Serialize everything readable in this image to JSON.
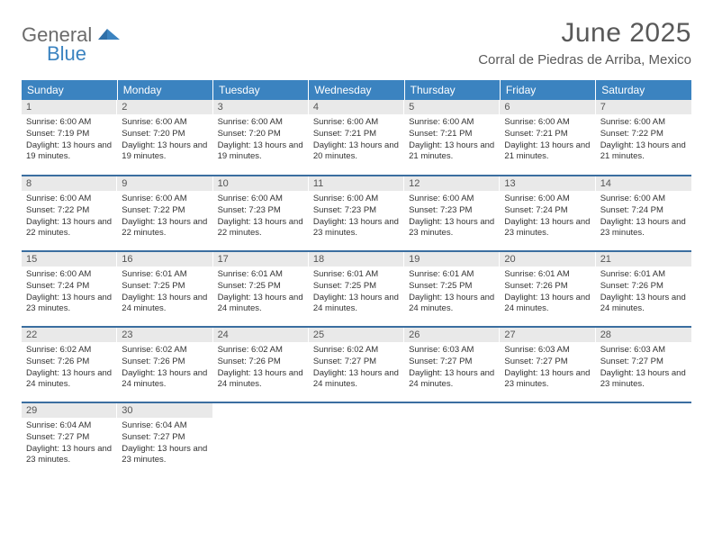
{
  "logo": {
    "general": "General",
    "blue": "Blue"
  },
  "title": "June 2025",
  "location": "Corral de Piedras de Arriba, Mexico",
  "colors": {
    "header_bg": "#3b83c0",
    "header_text": "#ffffff",
    "daynum_bg": "#e9e9e9",
    "daynum_text": "#555555",
    "row_border": "#3b6ea0",
    "title_text": "#595959"
  },
  "weekdays": [
    "Sunday",
    "Monday",
    "Tuesday",
    "Wednesday",
    "Thursday",
    "Friday",
    "Saturday"
  ],
  "weeks": [
    [
      {
        "n": "1",
        "sr": "6:00 AM",
        "ss": "7:19 PM",
        "dl": "13 hours and 19 minutes."
      },
      {
        "n": "2",
        "sr": "6:00 AM",
        "ss": "7:20 PM",
        "dl": "13 hours and 19 minutes."
      },
      {
        "n": "3",
        "sr": "6:00 AM",
        "ss": "7:20 PM",
        "dl": "13 hours and 19 minutes."
      },
      {
        "n": "4",
        "sr": "6:00 AM",
        "ss": "7:21 PM",
        "dl": "13 hours and 20 minutes."
      },
      {
        "n": "5",
        "sr": "6:00 AM",
        "ss": "7:21 PM",
        "dl": "13 hours and 21 minutes."
      },
      {
        "n": "6",
        "sr": "6:00 AM",
        "ss": "7:21 PM",
        "dl": "13 hours and 21 minutes."
      },
      {
        "n": "7",
        "sr": "6:00 AM",
        "ss": "7:22 PM",
        "dl": "13 hours and 21 minutes."
      }
    ],
    [
      {
        "n": "8",
        "sr": "6:00 AM",
        "ss": "7:22 PM",
        "dl": "13 hours and 22 minutes."
      },
      {
        "n": "9",
        "sr": "6:00 AM",
        "ss": "7:22 PM",
        "dl": "13 hours and 22 minutes."
      },
      {
        "n": "10",
        "sr": "6:00 AM",
        "ss": "7:23 PM",
        "dl": "13 hours and 22 minutes."
      },
      {
        "n": "11",
        "sr": "6:00 AM",
        "ss": "7:23 PM",
        "dl": "13 hours and 23 minutes."
      },
      {
        "n": "12",
        "sr": "6:00 AM",
        "ss": "7:23 PM",
        "dl": "13 hours and 23 minutes."
      },
      {
        "n": "13",
        "sr": "6:00 AM",
        "ss": "7:24 PM",
        "dl": "13 hours and 23 minutes."
      },
      {
        "n": "14",
        "sr": "6:00 AM",
        "ss": "7:24 PM",
        "dl": "13 hours and 23 minutes."
      }
    ],
    [
      {
        "n": "15",
        "sr": "6:00 AM",
        "ss": "7:24 PM",
        "dl": "13 hours and 23 minutes."
      },
      {
        "n": "16",
        "sr": "6:01 AM",
        "ss": "7:25 PM",
        "dl": "13 hours and 24 minutes."
      },
      {
        "n": "17",
        "sr": "6:01 AM",
        "ss": "7:25 PM",
        "dl": "13 hours and 24 minutes."
      },
      {
        "n": "18",
        "sr": "6:01 AM",
        "ss": "7:25 PM",
        "dl": "13 hours and 24 minutes."
      },
      {
        "n": "19",
        "sr": "6:01 AM",
        "ss": "7:25 PM",
        "dl": "13 hours and 24 minutes."
      },
      {
        "n": "20",
        "sr": "6:01 AM",
        "ss": "7:26 PM",
        "dl": "13 hours and 24 minutes."
      },
      {
        "n": "21",
        "sr": "6:01 AM",
        "ss": "7:26 PM",
        "dl": "13 hours and 24 minutes."
      }
    ],
    [
      {
        "n": "22",
        "sr": "6:02 AM",
        "ss": "7:26 PM",
        "dl": "13 hours and 24 minutes."
      },
      {
        "n": "23",
        "sr": "6:02 AM",
        "ss": "7:26 PM",
        "dl": "13 hours and 24 minutes."
      },
      {
        "n": "24",
        "sr": "6:02 AM",
        "ss": "7:26 PM",
        "dl": "13 hours and 24 minutes."
      },
      {
        "n": "25",
        "sr": "6:02 AM",
        "ss": "7:27 PM",
        "dl": "13 hours and 24 minutes."
      },
      {
        "n": "26",
        "sr": "6:03 AM",
        "ss": "7:27 PM",
        "dl": "13 hours and 24 minutes."
      },
      {
        "n": "27",
        "sr": "6:03 AM",
        "ss": "7:27 PM",
        "dl": "13 hours and 23 minutes."
      },
      {
        "n": "28",
        "sr": "6:03 AM",
        "ss": "7:27 PM",
        "dl": "13 hours and 23 minutes."
      }
    ],
    [
      {
        "n": "29",
        "sr": "6:04 AM",
        "ss": "7:27 PM",
        "dl": "13 hours and 23 minutes."
      },
      {
        "n": "30",
        "sr": "6:04 AM",
        "ss": "7:27 PM",
        "dl": "13 hours and 23 minutes."
      },
      null,
      null,
      null,
      null,
      null
    ]
  ],
  "labels": {
    "sunrise": "Sunrise:",
    "sunset": "Sunset:",
    "daylight": "Daylight:"
  }
}
